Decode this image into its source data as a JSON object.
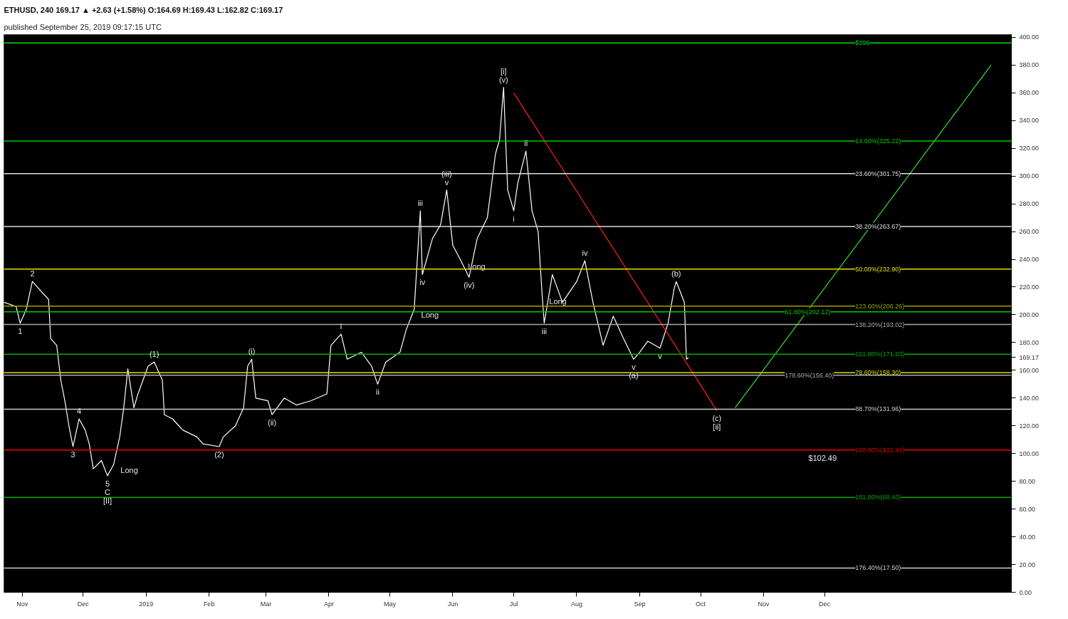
{
  "chart_data": {
    "type": "line",
    "title": "ETHUSD, 240  169.17 ▲ +2.63 (+1.58%)  O:164.69  H:169.43  L:162.82  C:169.17",
    "subtitle": "published September 25, 2019 09:17:15 UTC",
    "series": [
      {
        "color": "#ffffff",
        "x": [
          "2018-10-23",
          "2018-10-29",
          "2018-10-31",
          "2018-11-03",
          "2018-11-06",
          "2018-11-14",
          "2018-11-15",
          "2018-11-18",
          "2018-11-20",
          "2018-11-22",
          "2018-11-24",
          "2018-11-26",
          "2018-11-29",
          "2018-12-02",
          "2018-12-04",
          "2018-12-06",
          "2018-12-10",
          "2018-12-13",
          "2018-12-16",
          "2018-12-19",
          "2018-12-21",
          "2018-12-23",
          "2018-12-26",
          "2018-12-28",
          "2019-01-02",
          "2019-01-05",
          "2019-01-09",
          "2019-01-10",
          "2019-01-14",
          "2019-01-19",
          "2019-01-26",
          "2019-01-29",
          "2019-02-06",
          "2019-02-08",
          "2019-02-14",
          "2019-02-18",
          "2019-02-20",
          "2019-02-22",
          "2019-02-24",
          "2019-03-02",
          "2019-03-04",
          "2019-03-10",
          "2019-03-16",
          "2019-03-23",
          "2019-03-31",
          "2019-04-02",
          "2019-04-07",
          "2019-04-10",
          "2019-04-17",
          "2019-04-22",
          "2019-04-25",
          "2019-04-29",
          "2019-05-06",
          "2019-05-09",
          "2019-05-13",
          "2019-05-16",
          "2019-05-17",
          "2019-05-22",
          "2019-05-26",
          "2019-05-29",
          "2019-06-01",
          "2019-06-05",
          "2019-06-09",
          "2019-06-13",
          "2019-06-18",
          "2019-06-22",
          "2019-06-24",
          "2019-06-26",
          "2019-06-28",
          "2019-07-01",
          "2019-07-03",
          "2019-07-07",
          "2019-07-10",
          "2019-07-13",
          "2019-07-15",
          "2019-07-16",
          "2019-07-20",
          "2019-07-25",
          "2019-08-01",
          "2019-08-05",
          "2019-08-09",
          "2019-08-14",
          "2019-08-19",
          "2019-08-24",
          "2019-08-29",
          "2019-09-01",
          "2019-09-05",
          "2019-09-11",
          "2019-09-15",
          "2019-09-18",
          "2019-09-19",
          "2019-09-23",
          "2019-09-24",
          "2019-09-25"
        ],
        "values": [
          209,
          206,
          194,
          204,
          224,
          211,
          183,
          178,
          153,
          138,
          120,
          105,
          125,
          117,
          107,
          89,
          95,
          84,
          92,
          112,
          133,
          161,
          133,
          143,
          163,
          166,
          153,
          128,
          125,
          117,
          112,
          107,
          105,
          112,
          120,
          133,
          163,
          168,
          140,
          138,
          128,
          140,
          135,
          138,
          143,
          178,
          186,
          168,
          173,
          163,
          150,
          166,
          173,
          189,
          204,
          275,
          229,
          255,
          265,
          290,
          250,
          239,
          227,
          255,
          270,
          316,
          326,
          364,
          290,
          275,
          295,
          318,
          275,
          260,
          214,
          194,
          229,
          209,
          224,
          239,
          209,
          178,
          199,
          183,
          168,
          173,
          181,
          176,
          194,
          219,
          224,
          209,
          168,
          169.17
        ]
      },
      {
        "color": "#ff2020",
        "x": [
          "2019-07-01",
          "2019-10-09"
        ],
        "values": [
          360,
          131
        ]
      },
      {
        "color": "#33dd33",
        "x": [
          "2019-10-18",
          "2020-02-21"
        ],
        "values": [
          133,
          380
        ]
      }
    ],
    "xlim": [
      "2018-10-23",
      "2020-03-02"
    ],
    "xticks": [
      {
        "value": "2018-11-01",
        "label": "Nov"
      },
      {
        "value": "2018-12-01",
        "label": "Dec"
      },
      {
        "value": "2019-01-01",
        "label": "2019"
      },
      {
        "value": "2019-02-01",
        "label": "Feb"
      },
      {
        "value": "2019-03-01",
        "label": "Mar"
      },
      {
        "value": "2019-04-01",
        "label": "Apr"
      },
      {
        "value": "2019-05-01",
        "label": "May"
      },
      {
        "value": "2019-06-01",
        "label": "Jun"
      },
      {
        "value": "2019-07-01",
        "label": "Jul"
      },
      {
        "value": "2019-08-01",
        "label": "Aug"
      },
      {
        "value": "2019-09-01",
        "label": "Sep"
      },
      {
        "value": "2019-10-01",
        "label": "Oct"
      },
      {
        "value": "2019-11-01",
        "label": "Nov"
      },
      {
        "value": "2019-12-01",
        "label": "Dec"
      }
    ],
    "ylim": [
      0,
      402
    ],
    "yticks": [
      {
        "value": 0,
        "label": "0.00"
      },
      {
        "value": 20,
        "label": "20.00"
      },
      {
        "value": 40,
        "label": "40.00"
      },
      {
        "value": 60,
        "label": "60.00"
      },
      {
        "value": 80,
        "label": "80.00"
      },
      {
        "value": 100,
        "label": "100.00"
      },
      {
        "value": 120,
        "label": "120.00"
      },
      {
        "value": 140,
        "label": "140.00"
      },
      {
        "value": 160,
        "label": "160.00"
      },
      {
        "value": 169.17,
        "label": "169.17"
      },
      {
        "value": 180,
        "label": "180.00"
      },
      {
        "value": 200,
        "label": "200.00"
      },
      {
        "value": 220,
        "label": "220.00"
      },
      {
        "value": 240,
        "label": "240.00"
      },
      {
        "value": 260,
        "label": "260.00"
      },
      {
        "value": 280,
        "label": "280.00"
      },
      {
        "value": 300,
        "label": "300.00"
      },
      {
        "value": 320,
        "label": "320.00"
      },
      {
        "value": 340,
        "label": "340.00"
      },
      {
        "value": 360,
        "label": "360.00"
      },
      {
        "value": 380,
        "label": "380.00"
      },
      {
        "value": 400,
        "label": "400.00"
      }
    ],
    "ref_lines": [
      {
        "axis": "y",
        "value": 396,
        "label": "$396",
        "color": "#00dd00"
      },
      {
        "axis": "y",
        "value": 325.22,
        "label": "14.60%(325.22)",
        "color": "#00cc00"
      },
      {
        "axis": "y",
        "value": 301.75,
        "label": "23.60%(301.75)",
        "color": "#dddddd"
      },
      {
        "axis": "y",
        "value": 263.67,
        "label": "38.20%(263.67)",
        "color": "#dddddd"
      },
      {
        "axis": "y",
        "value": 232.9,
        "label": "50.00%(232.90)",
        "color": "#e0e000"
      },
      {
        "axis": "y",
        "value": 206.26,
        "label": "123.60%(206.26)",
        "color": "#a0a000"
      },
      {
        "axis": "y",
        "value": 202.12,
        "label": "61.80%(202.12)",
        "color": "#00cc00"
      },
      {
        "axis": "y",
        "value": 193.02,
        "label": "138.20%(193.02)",
        "color": "#aaaaaa"
      },
      {
        "axis": "y",
        "value": 171.63,
        "label": "161.80%(171.63)",
        "color": "#00aa00"
      },
      {
        "axis": "y",
        "value": 158.3,
        "label": "78.60%(158.30)",
        "color": "#e0e000"
      },
      {
        "axis": "y",
        "value": 156.4,
        "label": "178.60%(156.40)",
        "color": "#aaaaaa"
      },
      {
        "axis": "y",
        "value": 131.96,
        "label": "88.70%(131.96)",
        "color": "#cccccc"
      },
      {
        "axis": "y",
        "value": 102.49,
        "label": "100.00%(102.49)",
        "color": "#ee0000"
      },
      {
        "axis": "y",
        "value": 68.4,
        "label": "161.80%(68.40)",
        "color": "#00aa00"
      },
      {
        "axis": "y",
        "value": 17.5,
        "label": "176.40%(17.50)",
        "color": "#cccccc"
      }
    ],
    "annotations": [
      {
        "text": "1",
        "x": "2018-10-31",
        "y": 194
      },
      {
        "text": "2",
        "x": "2018-11-06",
        "y": 224
      },
      {
        "text": "3",
        "x": "2018-11-26",
        "y": 105
      },
      {
        "text": "4",
        "x": "2018-11-29",
        "y": 125
      },
      {
        "text": "5",
        "x": "2018-12-13",
        "y": 84
      },
      {
        "text": "C",
        "x": "2018-12-13",
        "y": 84
      },
      {
        "text": "[II]",
        "x": "2018-12-13",
        "y": 84
      },
      {
        "text": "Long",
        "x": "2018-12-16",
        "y": 92
      },
      {
        "text": "(1)",
        "x": "2019-01-05",
        "y": 166
      },
      {
        "text": "(2)",
        "x": "2019-02-06",
        "y": 105
      },
      {
        "text": "(i)",
        "x": "2019-02-22",
        "y": 168
      },
      {
        "text": "(ii)",
        "x": "2019-03-04",
        "y": 128
      },
      {
        "text": "i",
        "x": "2019-04-07",
        "y": 186
      },
      {
        "text": "ii",
        "x": "2019-04-25",
        "y": 150
      },
      {
        "text": "Long",
        "x": "2019-05-13",
        "y": 204
      },
      {
        "text": "iii",
        "x": "2019-05-16",
        "y": 275
      },
      {
        "text": "iv",
        "x": "2019-05-17",
        "y": 229
      },
      {
        "text": "v",
        "x": "2019-05-29",
        "y": 290
      },
      {
        "text": "(iii)",
        "x": "2019-05-29",
        "y": 290
      },
      {
        "text": "Long",
        "x": "2019-06-05",
        "y": 239
      },
      {
        "text": "(iv)",
        "x": "2019-06-09",
        "y": 227
      },
      {
        "text": "(v)",
        "x": "2019-06-26",
        "y": 364
      },
      {
        "text": "[i]",
        "x": "2019-06-26",
        "y": 364
      },
      {
        "text": "i",
        "x": "2019-07-01",
        "y": 275
      },
      {
        "text": "ii",
        "x": "2019-07-07",
        "y": 318
      },
      {
        "text": "Long",
        "x": "2019-07-15",
        "y": 214
      },
      {
        "text": "iii",
        "x": "2019-07-16",
        "y": 194
      },
      {
        "text": "iv",
        "x": "2019-08-05",
        "y": 239
      },
      {
        "text": "v",
        "x": "2019-08-29",
        "y": 168
      },
      {
        "text": "(a)",
        "x": "2019-08-29",
        "y": 168
      },
      {
        "text": "v",
        "x": "2019-09-11",
        "y": 176
      },
      {
        "text": "(b)",
        "x": "2019-09-19",
        "y": 224
      },
      {
        "text": "(c)",
        "x": "2019-10-09",
        "y": 131
      },
      {
        "text": "[ii]",
        "x": "2019-10-09",
        "y": 131
      },
      {
        "text": "$102.49",
        "x": "2019-11-30",
        "y": 102.49
      }
    ],
    "grid": false
  }
}
